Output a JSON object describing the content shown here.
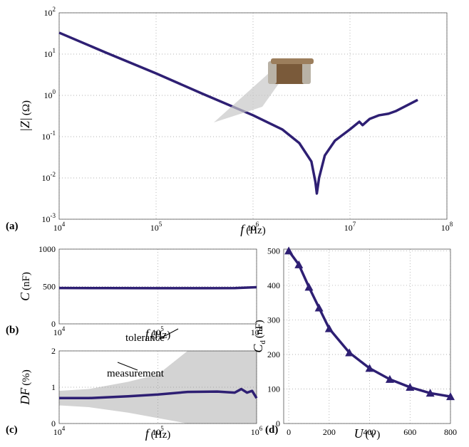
{
  "chart_data": [
    {
      "type": "line",
      "panel_label": "(a)",
      "xlabel": {
        "var": "f",
        "unit": "(Hz)"
      },
      "ylabel": {
        "var": "|Z|",
        "unit": "(Ω)"
      },
      "xlog": true,
      "ylog": true,
      "grid": true,
      "xlim": [
        10000,
        100000000
      ],
      "ylim": [
        0.001,
        100
      ],
      "xticks": [
        {
          "value": 10000,
          "label": "10",
          "sup": "4"
        },
        {
          "value": 100000,
          "label": "10",
          "sup": "5"
        },
        {
          "value": 1000000,
          "label": "10",
          "sup": "6"
        },
        {
          "value": 10000000,
          "label": "10",
          "sup": "7"
        },
        {
          "value": 100000000,
          "label": "10",
          "sup": "8"
        }
      ],
      "yticks": [
        {
          "value": 0.001,
          "label": "10",
          "sup": "-3"
        },
        {
          "value": 0.01,
          "label": "10",
          "sup": "-2"
        },
        {
          "value": 0.1,
          "label": "10",
          "sup": "-1"
        },
        {
          "value": 1,
          "label": "10",
          "sup": "0"
        },
        {
          "value": 10,
          "label": "10",
          "sup": "1"
        },
        {
          "value": 100,
          "label": "10",
          "sup": "2"
        }
      ],
      "x": [
        10000,
        30000,
        100000,
        300000,
        1000000,
        2000000,
        3000000,
        4000000,
        4400000,
        4550000,
        4800000,
        5500000,
        7000000,
        10000000,
        12500000,
        13500000,
        16000000,
        20000000,
        25000000,
        30000000,
        50000000
      ],
      "series": [
        {
          "color": "#2e1f73",
          "values": [
            33,
            11,
            3.4,
            1.1,
            0.33,
            0.15,
            0.07,
            0.025,
            0.008,
            0.0042,
            0.01,
            0.035,
            0.08,
            0.15,
            0.23,
            0.19,
            0.27,
            0.33,
            0.36,
            0.42,
            0.78
          ]
        }
      ]
    },
    {
      "type": "line",
      "panel_label": "(b)",
      "xlabel": {
        "var": "f",
        "unit": "(Hz)"
      },
      "ylabel": {
        "var": "C",
        "unit": "(nF)"
      },
      "xlog": true,
      "ylog": false,
      "grid": true,
      "xlim": [
        10000,
        1000000
      ],
      "ylim": [
        0,
        1000
      ],
      "xticks": [
        {
          "value": 10000,
          "label": "10",
          "sup": "4"
        },
        {
          "value": 100000,
          "label": "10",
          "sup": "5"
        },
        {
          "value": 1000000,
          "label": "10",
          "sup": "6"
        }
      ],
      "yticks": [
        0,
        500,
        1000
      ],
      "x": [
        10000,
        30000,
        100000,
        300000,
        600000,
        1000000
      ],
      "series": [
        {
          "color": "#2e1f73",
          "values": [
            480,
            478,
            477,
            477,
            478,
            490
          ]
        }
      ]
    },
    {
      "type": "line",
      "panel_label": "(c)",
      "xlabel": {
        "var": "f",
        "unit": "(Hz)"
      },
      "ylabel": {
        "var": "DF",
        "unit": "(%)"
      },
      "xlog": true,
      "ylog": false,
      "grid": true,
      "xlim": [
        10000,
        1000000
      ],
      "ylim": [
        0,
        2
      ],
      "xticks": [
        {
          "value": 10000,
          "label": "10",
          "sup": "4"
        },
        {
          "value": 100000,
          "label": "10",
          "sup": "5"
        },
        {
          "value": 1000000,
          "label": "10",
          "sup": "6"
        }
      ],
      "yticks": [
        0,
        1,
        2
      ],
      "x": [
        10000,
        20000,
        50000,
        100000,
        200000,
        400000,
        600000,
        700000,
        800000,
        900000,
        1000000
      ],
      "series": [
        {
          "name": "tolerance",
          "color": "#d3d3d3",
          "upper": [
            0.9,
            0.95,
            1.15,
            1.35,
            2,
            2,
            2,
            2,
            2,
            2,
            2
          ],
          "lower": [
            0.5,
            0.45,
            0.3,
            0.15,
            0,
            0,
            0,
            0,
            0,
            0,
            0
          ]
        },
        {
          "name": "measurement",
          "color": "#2e1f73",
          "values": [
            0.7,
            0.7,
            0.75,
            0.8,
            0.87,
            0.88,
            0.85,
            0.95,
            0.85,
            0.9,
            0.7
          ]
        }
      ]
    },
    {
      "type": "line",
      "panel_label": "(d)",
      "xlabel": {
        "var": "U",
        "unit": "(V)"
      },
      "ylabel": {
        "var": "C",
        "sub": "d",
        "unit": "(nF)"
      },
      "xlog": false,
      "ylog": false,
      "grid": true,
      "marker": "triangle",
      "xlim": [
        -25,
        800
      ],
      "ylim": [
        0,
        505
      ],
      "xticks": [
        0,
        200,
        400,
        600,
        800
      ],
      "yticks": [
        0,
        100,
        200,
        300,
        400,
        500
      ],
      "x": [
        0,
        50,
        100,
        150,
        200,
        300,
        400,
        500,
        600,
        700,
        800
      ],
      "series": [
        {
          "color": "#2e1f73",
          "values": [
            500,
            460,
            395,
            335,
            275,
            205,
            160,
            128,
            105,
            88,
            78
          ]
        }
      ]
    }
  ]
}
